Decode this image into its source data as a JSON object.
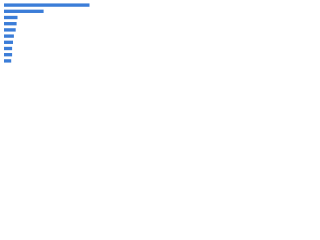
{
  "chart_data": {
    "type": "bar",
    "orientation": "horizontal",
    "categories": [
      null,
      null,
      null,
      null,
      null,
      null,
      null,
      null,
      null,
      null
    ],
    "values": [
      95,
      44,
      15,
      14,
      13,
      11,
      10,
      9,
      9,
      8
    ],
    "color": "#3b7dd8",
    "xlim": [
      0,
      100
    ]
  }
}
